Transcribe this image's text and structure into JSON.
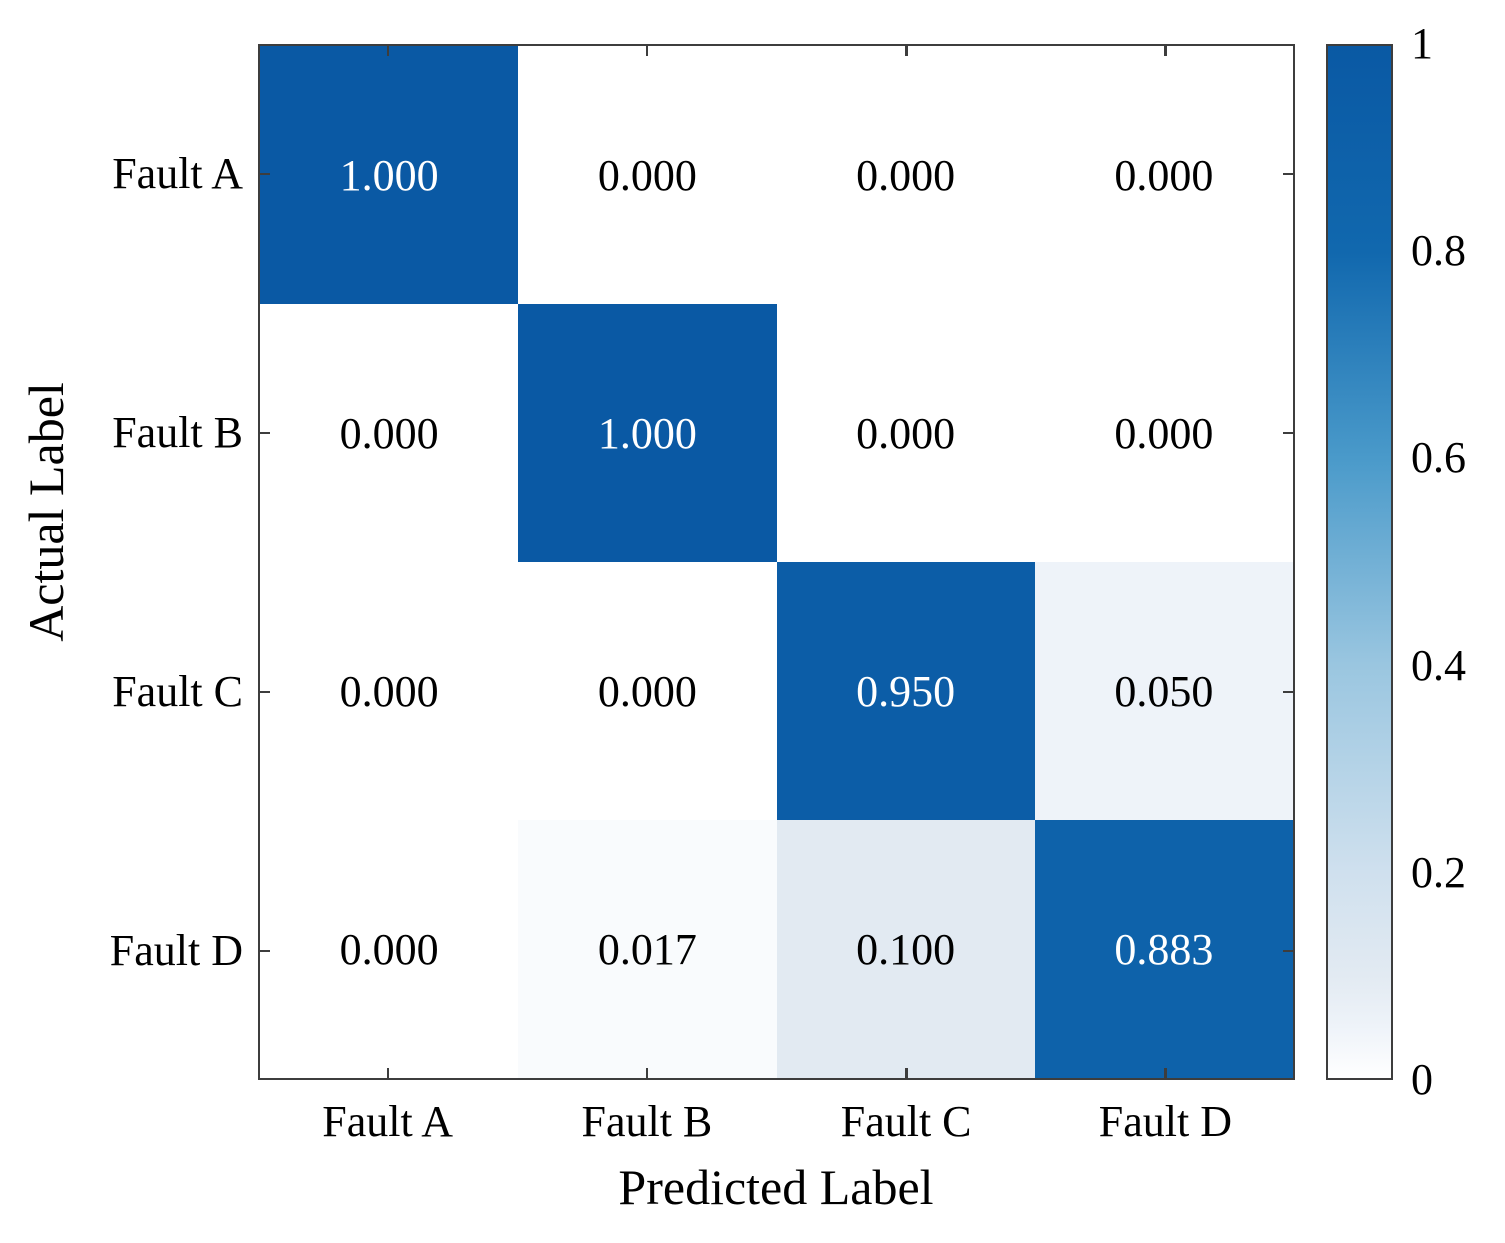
{
  "chart_data": {
    "type": "heatmap",
    "subtype": "confusion-matrix",
    "title": "",
    "xlabel": "Predicted Label",
    "ylabel": "Actual Label",
    "x_categories": [
      "Fault A",
      "Fault B",
      "Fault C",
      "Fault D"
    ],
    "y_categories": [
      "Fault A",
      "Fault B",
      "Fault C",
      "Fault D"
    ],
    "matrix": [
      [
        1.0,
        0.0,
        0.0,
        0.0
      ],
      [
        0.0,
        1.0,
        0.0,
        0.0
      ],
      [
        0.0,
        0.0,
        0.95,
        0.05
      ],
      [
        0.0,
        0.017,
        0.1,
        0.883
      ]
    ],
    "cell_labels": [
      [
        "1.000",
        "0.000",
        "0.000",
        "0.000"
      ],
      [
        "0.000",
        "1.000",
        "0.000",
        "0.000"
      ],
      [
        "0.000",
        "0.000",
        "0.950",
        "0.050"
      ],
      [
        "0.000",
        "0.017",
        "0.100",
        "0.883"
      ]
    ],
    "value_range": [
      0,
      1
    ],
    "grid": false,
    "colorbar": {
      "position": "right",
      "min": 0,
      "max": 1,
      "ticks": [
        0,
        0.2,
        0.4,
        0.6,
        0.8,
        1
      ],
      "tick_labels": [
        "0",
        "0.2",
        "0.4",
        "0.6",
        "0.8",
        "1"
      ]
    },
    "colormap_stops": [
      {
        "value": 0.0,
        "color": "#ffffff"
      },
      {
        "value": 0.05,
        "color": "#eef3f9"
      },
      {
        "value": 0.1,
        "color": "#e2eaf2"
      },
      {
        "value": 0.2,
        "color": "#cfe0ee"
      },
      {
        "value": 0.4,
        "color": "#9ac6e0"
      },
      {
        "value": 0.6,
        "color": "#4a9aca"
      },
      {
        "value": 0.8,
        "color": "#1168ae"
      },
      {
        "value": 1.0,
        "color": "#0a59a4"
      }
    ],
    "cell_text_colors": {
      "dark_cell": "#ffffff",
      "light_cell": "#000000",
      "white_text_threshold": 0.6
    },
    "axis_color": "#3d3d3d",
    "text_color": "#000000"
  }
}
